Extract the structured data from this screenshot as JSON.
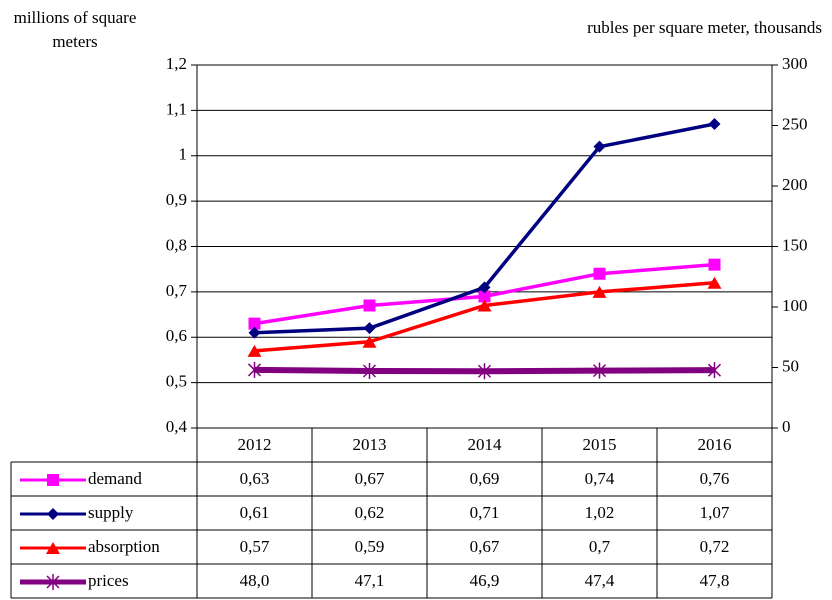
{
  "chart_data": {
    "type": "line",
    "y_label": "millions of square meters",
    "y2_label": "rubles per square meter, thousands",
    "categories": [
      "2012",
      "2013",
      "2014",
      "2015",
      "2016"
    ],
    "ylim": [
      0.4,
      1.2
    ],
    "yticks": [
      {
        "value": 0.4,
        "label": "0,4"
      },
      {
        "value": 0.5,
        "label": "0,5"
      },
      {
        "value": 0.6,
        "label": "0,6"
      },
      {
        "value": 0.7,
        "label": "0,7"
      },
      {
        "value": 0.8,
        "label": "0,8"
      },
      {
        "value": 0.9,
        "label": "0,9"
      },
      1,
      {
        "value": 1.1,
        "label": "1,1"
      },
      {
        "value": 1.2,
        "label": "1,2"
      }
    ],
    "y2lim": [
      0,
      300
    ],
    "y2ticks": [
      0,
      50,
      100,
      150,
      200,
      250,
      300
    ],
    "grid": true,
    "series": [
      {
        "name": "demand",
        "color": "#ff00ff",
        "marker": "square",
        "values": [
          0.63,
          0.67,
          0.69,
          0.74,
          0.76
        ],
        "value_labels": [
          "0,63",
          "0,67",
          "0,69",
          "0,74",
          "0,76"
        ]
      },
      {
        "name": "supply",
        "color": "#000080",
        "marker": "diamond",
        "values": [
          0.61,
          0.62,
          0.71,
          1.02,
          1.07
        ],
        "value_labels": [
          "0,61",
          "0,62",
          "0,71",
          "1,02",
          "1,07"
        ]
      },
      {
        "name": "absorption",
        "color": "#ff0000",
        "marker": "triangle",
        "values": [
          0.57,
          0.59,
          0.67,
          0.7,
          0.72
        ],
        "value_labels": [
          "0,57",
          "0,59",
          "0,67",
          "0,7",
          "0,72"
        ]
      },
      {
        "name": "prices",
        "color": "#800080",
        "marker": "star",
        "axis": "y2",
        "values": [
          48.0,
          47.1,
          46.9,
          47.4,
          47.8
        ],
        "value_labels": [
          "48,0",
          "47,1",
          "46,9",
          "47,4",
          "47,8"
        ]
      }
    ]
  }
}
